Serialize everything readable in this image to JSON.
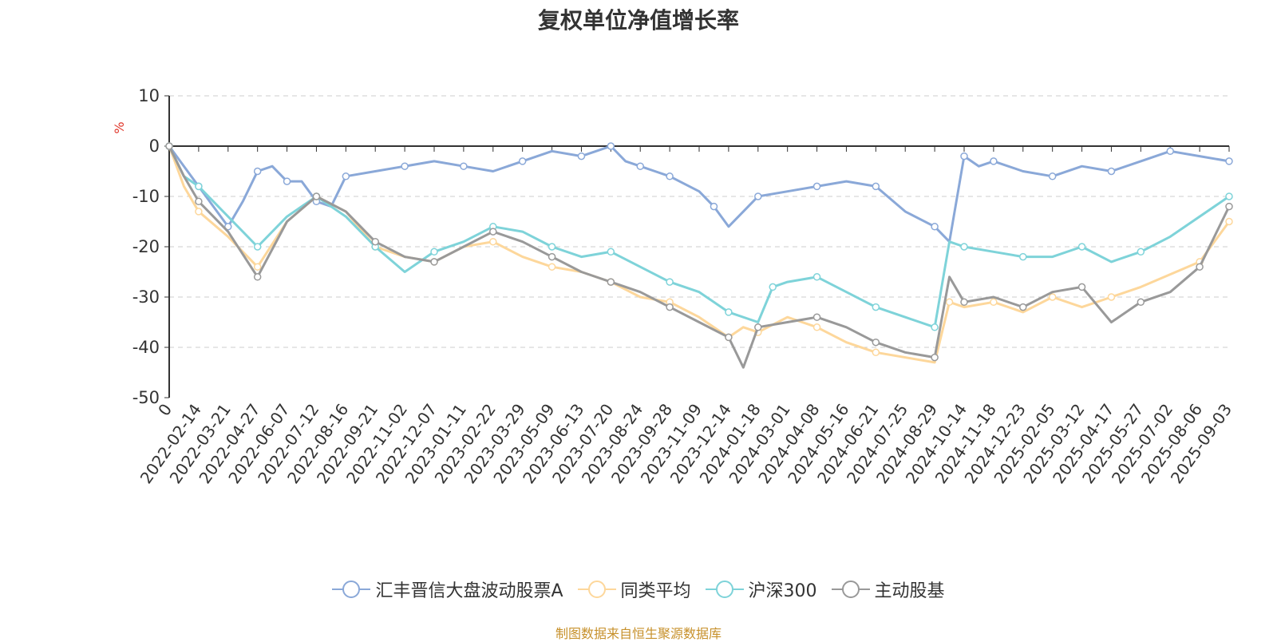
{
  "chart_data": {
    "type": "line",
    "title": "复权单位净值增长率",
    "ylabel": "%",
    "ylim": [
      -50,
      10
    ],
    "yticks": [
      10,
      0,
      -10,
      -20,
      -30,
      -40,
      -50
    ],
    "x_tick_labels": [
      "0",
      "2022-02-14",
      "2022-03-21",
      "2022-04-27",
      "2022-06-07",
      "2022-07-12",
      "2022-08-16",
      "2022-09-21",
      "2022-11-02",
      "2022-12-07",
      "2023-01-11",
      "2023-02-22",
      "2023-03-29",
      "2023-05-09",
      "2023-06-13",
      "2023-07-20",
      "2023-08-24",
      "2023-09-28",
      "2023-11-09",
      "2023-12-14",
      "2024-01-18",
      "2024-03-01",
      "2024-04-08",
      "2024-05-16",
      "2024-06-21",
      "2024-07-25",
      "2024-08-29",
      "2024-10-14",
      "2024-11-18",
      "2024-12-23",
      "2025-02-05",
      "2025-03-12",
      "2025-04-17",
      "2025-05-27",
      "2025-07-02",
      "2025-08-06",
      "2025-09-03"
    ],
    "grid": true,
    "legend_position": "bottom",
    "series": [
      {
        "name": "汇丰晋信大盘波动股票A",
        "color": "#8aa8d8",
        "values": [
          0,
          -4,
          -8,
          -12,
          -16,
          -11,
          -5,
          -4,
          -7,
          -7,
          -11,
          -12,
          -6,
          -5,
          -4,
          -3,
          -4,
          -5,
          -3,
          -1,
          -2,
          -1,
          0,
          -3,
          -4,
          -5,
          -6,
          -9,
          -12,
          -16,
          -10,
          -9,
          -8,
          -7,
          -8,
          -13,
          -16,
          -19,
          -2,
          -4,
          -3,
          -5,
          -6,
          -4,
          -5,
          -3,
          -1,
          -2,
          -3
        ],
        "x": [
          0,
          0.5,
          1,
          1.5,
          2,
          2.5,
          3,
          3.5,
          4,
          4.5,
          5,
          5.5,
          6,
          7,
          8,
          9,
          10,
          11,
          12,
          13,
          14,
          14.5,
          15,
          15.5,
          16,
          16.5,
          17,
          18,
          18.5,
          19,
          20,
          21,
          22,
          23,
          24,
          25,
          26,
          26.5,
          27,
          27.5,
          28,
          29,
          30,
          31,
          32,
          33,
          34,
          35,
          36
        ]
      },
      {
        "name": "同类平均",
        "color": "#fdd79b",
        "values": [
          0,
          -8,
          -13,
          -18,
          -24,
          -15,
          -10,
          -13,
          -20,
          -22,
          -23,
          -20,
          -19,
          -22,
          -24,
          -25,
          -27,
          -30,
          -31,
          -34,
          -38,
          -36,
          -37,
          -34,
          -36,
          -39,
          -41,
          -43,
          -31,
          -32,
          -31,
          -33,
          -30,
          -32,
          -30,
          -28,
          -23,
          -15
        ],
        "x": [
          0,
          0.5,
          1,
          2,
          3,
          4,
          5,
          6,
          7,
          8,
          9,
          10,
          11,
          12,
          13,
          14,
          15,
          16,
          17,
          18,
          19,
          19.5,
          20,
          21,
          22,
          23,
          24,
          26,
          26.5,
          27,
          28,
          29,
          30,
          31,
          32,
          33,
          35,
          36
        ]
      },
      {
        "name": "沪深300",
        "color": "#7ed3d9",
        "values": [
          0,
          -6,
          -8,
          -14,
          -20,
          -14,
          -10,
          -14,
          -20,
          -25,
          -21,
          -19,
          -16,
          -17,
          -20,
          -22,
          -21,
          -24,
          -27,
          -29,
          -33,
          -35,
          -28,
          -27,
          -26,
          -29,
          -32,
          -34,
          -36,
          -19,
          -20,
          -21,
          -22,
          -22,
          -20,
          -23,
          -21,
          -18,
          -10
        ],
        "x": [
          0,
          0.5,
          1,
          2,
          3,
          4,
          5,
          6,
          7,
          8,
          9,
          10,
          11,
          12,
          13,
          14,
          15,
          16,
          17,
          18,
          19,
          20,
          20.5,
          21,
          22,
          23,
          24,
          25,
          26,
          26.5,
          27,
          28,
          29,
          30,
          31,
          32,
          33,
          34,
          36
        ]
      },
      {
        "name": "主动股基",
        "color": "#999999",
        "values": [
          0,
          -6,
          -11,
          -17,
          -26,
          -15,
          -10,
          -13,
          -19,
          -22,
          -23,
          -20,
          -17,
          -19,
          -22,
          -25,
          -27,
          -29,
          -32,
          -35,
          -38,
          -44,
          -36,
          -35,
          -34,
          -36,
          -39,
          -41,
          -42,
          -26,
          -31,
          -30,
          -32,
          -29,
          -28,
          -35,
          -31,
          -29,
          -24,
          -12
        ],
        "x": [
          0,
          0.5,
          1,
          2,
          3,
          4,
          5,
          6,
          7,
          8,
          9,
          10,
          11,
          12,
          13,
          14,
          15,
          16,
          17,
          18,
          19,
          19.5,
          20,
          21,
          22,
          23,
          24,
          25,
          26,
          26.5,
          27,
          28,
          29,
          30,
          31,
          32,
          33,
          34,
          35,
          36
        ]
      }
    ]
  },
  "source_note": "制图数据来自恒生聚源数据库"
}
